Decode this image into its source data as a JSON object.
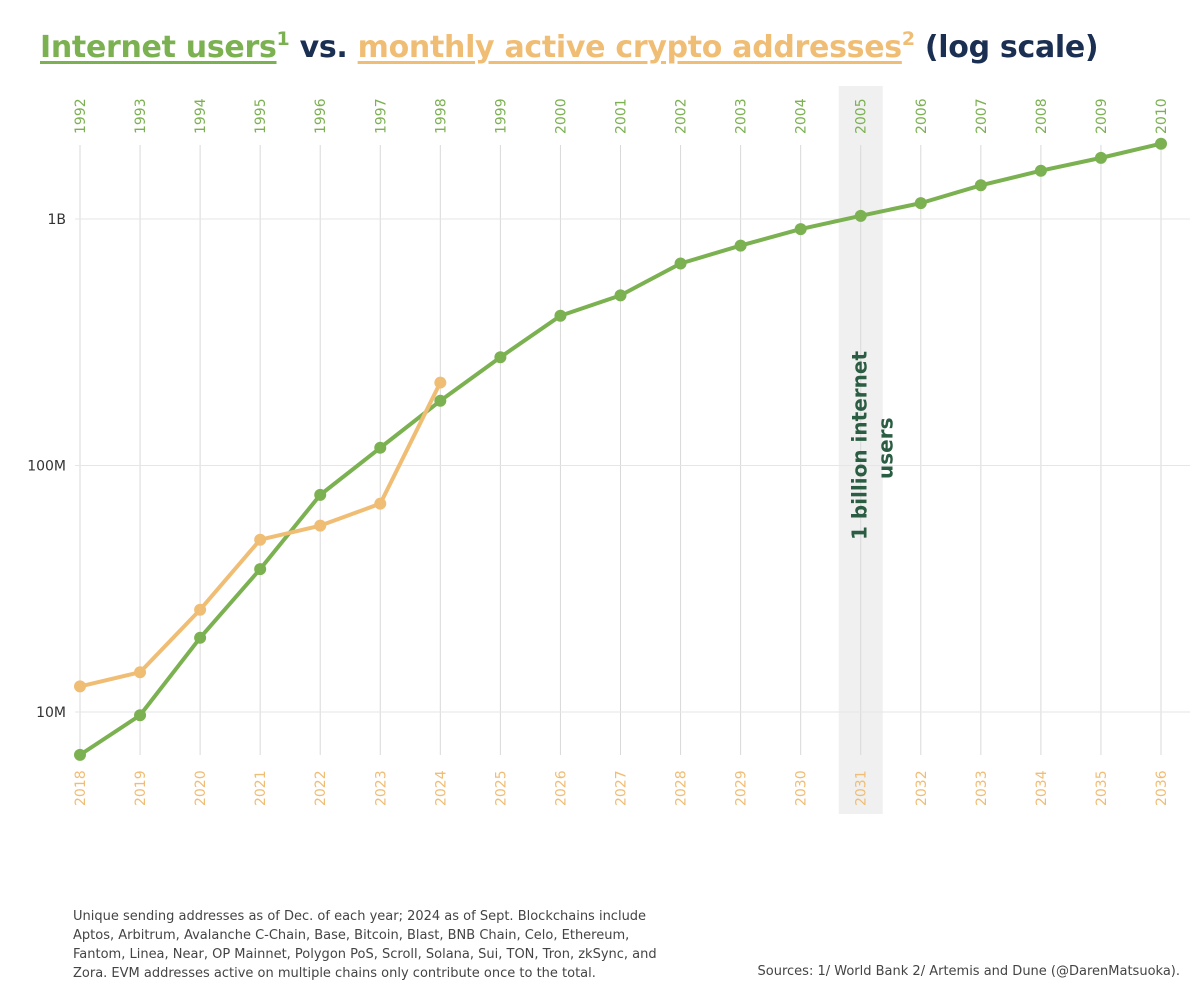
{
  "title": {
    "green_text": "Internet users",
    "green_sup": "1",
    "mid_text": " vs. ",
    "orange_text": "monthly active crypto addresses",
    "orange_sup": "2",
    "end_text": " (log scale)"
  },
  "colors": {
    "internet": "#7bb151",
    "crypto": "#f0bd75",
    "title": "#1b2f52",
    "annotation": "#2a5d42",
    "grid": "#d9d9d9",
    "highlight": "#f0f0f0"
  },
  "chart_data": {
    "type": "line",
    "title": "Internet users¹ vs. monthly active crypto addresses² (log scale)",
    "y_scale": "log",
    "ylim": [
      5500000,
      2300000000
    ],
    "y_ticks": [
      {
        "value": 10000000,
        "label": "10M"
      },
      {
        "value": 100000000,
        "label": "100M"
      },
      {
        "value": 1000000000,
        "label": "1B"
      }
    ],
    "x_top_labels": [
      "1992",
      "1993",
      "1994",
      "1995",
      "1996",
      "1997",
      "1998",
      "1999",
      "2000",
      "2001",
      "2002",
      "2003",
      "2004",
      "2005",
      "2006",
      "2007",
      "2008",
      "2009",
      "2010"
    ],
    "x_bottom_labels": [
      "2018",
      "2019",
      "2020",
      "2021",
      "2022",
      "2023",
      "2024",
      "2025",
      "2026",
      "2027",
      "2028",
      "2029",
      "2030",
      "2031",
      "2032",
      "2033",
      "2034",
      "2035",
      "2036"
    ],
    "series": [
      {
        "name": "Internet users",
        "axis": "top",
        "color": "#7bb151",
        "values": [
          6700000,
          9700000,
          20000000,
          38000000,
          76000000,
          118000000,
          183000000,
          275000000,
          405000000,
          490000000,
          660000000,
          780000000,
          910000000,
          1030000000,
          1160000000,
          1370000000,
          1570000000,
          1770000000,
          2020000000
        ]
      },
      {
        "name": "Monthly active crypto addresses",
        "axis": "bottom",
        "color": "#f0bd75",
        "values": [
          12700000,
          14500000,
          26000000,
          50000000,
          57000000,
          70000000,
          217000000
        ]
      }
    ],
    "highlight": {
      "index": 13,
      "label_line1": "1 billion internet",
      "label_line2": "users"
    }
  },
  "footnote": "Unique sending addresses as of Dec. of each year; 2024 as of Sept. Blockchains include Aptos, Arbitrum, Avalanche C-Chain, Base, Bitcoin, Blast, BNB Chain, Celo, Ethereum, Fantom, Linea, Near, OP Mainnet, Polygon PoS, Scroll, Solana, Sui, TON, Tron, zkSync, and Zora. EVM addresses active on multiple chains only contribute once to the total.",
  "sources": "Sources: 1/ World Bank 2/ Artemis and Dune (@DarenMatsuoka)."
}
